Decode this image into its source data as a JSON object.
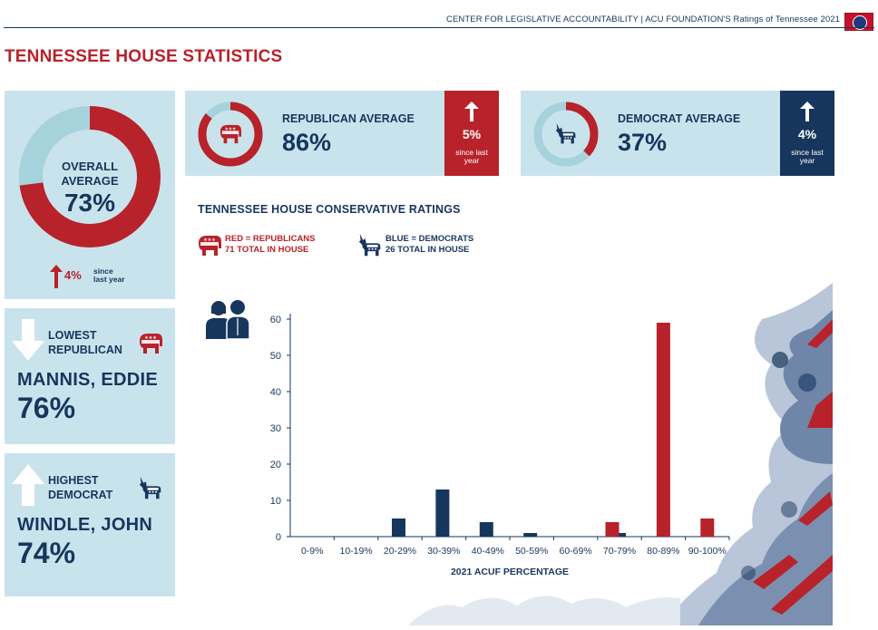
{
  "header": {
    "text": "CENTER FOR LEGISLATIVE ACCOUNTABILITY | ACU FOUNDATION'S Ratings of Tennessee 2021",
    "flag_icon": "tennessee-flag-icon"
  },
  "page_title": "TENNESSEE HOUSE STATISTICS",
  "overall": {
    "label_line1": "OVERALL",
    "label_line2": "AVERAGE",
    "value": "73%",
    "percent": 73,
    "change": "4%",
    "since_line1": "since",
    "since_line2": "last year"
  },
  "republican_average": {
    "label": "REPUBLICAN AVERAGE",
    "value": "86%",
    "percent": 86,
    "change": "5%",
    "since_line1": "since last",
    "since_line2": "year",
    "icon": "elephant-icon"
  },
  "democrat_average": {
    "label": "DEMOCRAT AVERAGE",
    "value": "37%",
    "percent": 37,
    "change": "4%",
    "since_line1": "since last",
    "since_line2": "year",
    "icon": "donkey-icon"
  },
  "lowest_republican": {
    "label_line1": "LOWEST",
    "label_line2": "REPUBLICAN",
    "name": "MANNIS, EDDIE",
    "value": "76%",
    "icon": "elephant-icon"
  },
  "highest_democrat": {
    "label_line1": "HIGHEST",
    "label_line2": "DEMOCRAT",
    "name": "WINDLE, JOHN",
    "value": "74%",
    "icon": "donkey-icon"
  },
  "legend": {
    "rep_line1": "RED = REPUBLICANS",
    "rep_line2_num": "71",
    "rep_line2_text": " TOTAL IN HOUSE",
    "dem_line1": "BLUE = DEMOCRATS",
    "dem_line2_num": "26",
    "dem_line2_text": " TOTAL IN HOUSE"
  },
  "colors": {
    "republican": "#b8222a",
    "democrat": "#17365d",
    "panel": "#c9e3ec",
    "ring_light": "#a6d2dc"
  },
  "chart_data": {
    "type": "bar",
    "title": "TENNESSEE HOUSE CONSERVATIVE RATINGS",
    "xlabel": "2021 ACUF PERCENTAGE",
    "ylabel": "",
    "categories": [
      "0-9%",
      "10-19%",
      "20-29%",
      "30-39%",
      "40-49%",
      "50-59%",
      "60-69%",
      "70-79%",
      "80-89%",
      "90-100%"
    ],
    "series": [
      {
        "name": "RED = REPUBLICANS",
        "color": "#b8222a",
        "values": [
          0,
          0,
          0,
          0,
          0,
          0,
          0,
          4,
          59,
          5
        ]
      },
      {
        "name": "BLUE = DEMOCRATS",
        "color": "#17365d",
        "values": [
          0,
          0,
          5,
          13,
          4,
          1,
          0,
          1,
          0,
          0
        ]
      }
    ],
    "yticks": [
      "0",
      "10",
      "20",
      "30",
      "40",
      "50",
      "60"
    ],
    "ylim": [
      0,
      60
    ],
    "grid": false
  }
}
